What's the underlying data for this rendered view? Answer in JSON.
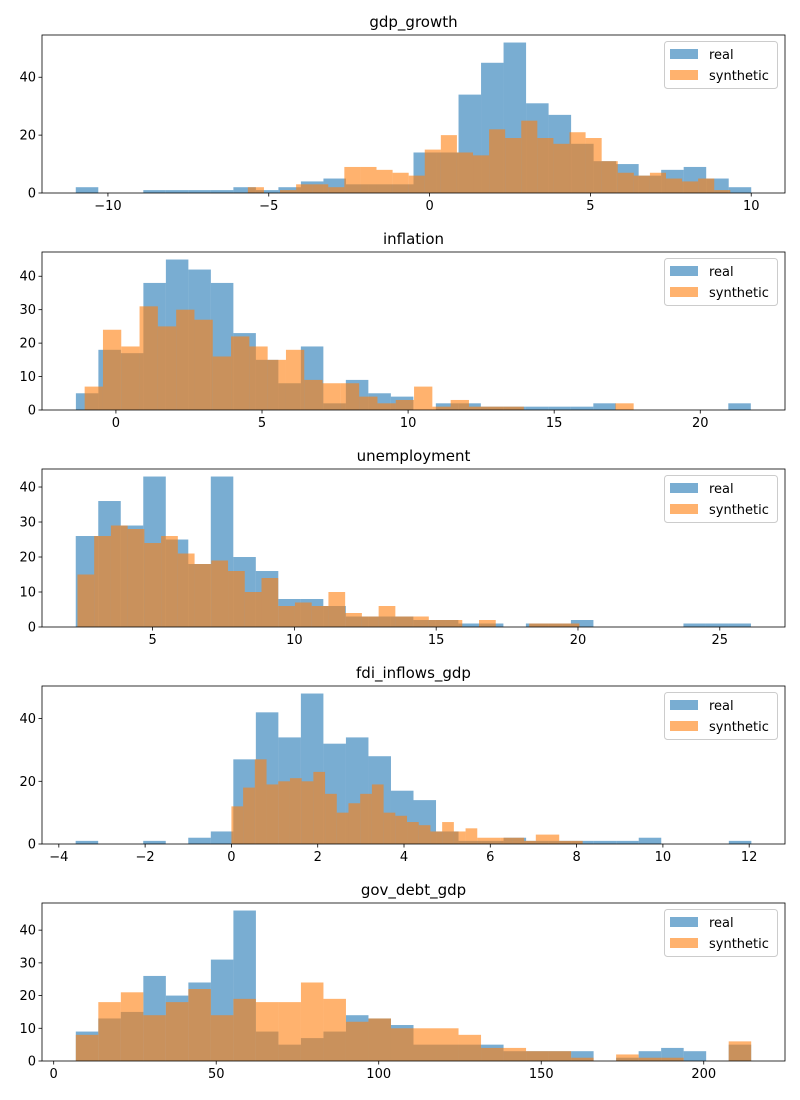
{
  "legend": {
    "real_label": "real",
    "synthetic_label": "synthetic",
    "placement": "top-right"
  },
  "colors": {
    "real": "#1f77b4",
    "synthetic": "#ff7f0e",
    "opacity": 0.6
  },
  "chart_data": [
    {
      "type": "bar",
      "title": "gdp_growth",
      "xlim": [
        -12.05,
        11.05
      ],
      "xticks": [
        -10,
        -5,
        0,
        5,
        10
      ],
      "xtick_labels": [
        "−10",
        "−5",
        "0",
        "5",
        "10"
      ],
      "yticks": [
        0,
        20,
        40
      ],
      "ytick_labels": [
        "0",
        "20",
        "40"
      ],
      "series": [
        {
          "name": "real",
          "range": [
            -11,
            10
          ],
          "values": [
            2,
            0,
            0,
            1,
            1,
            1,
            1,
            2,
            1,
            2,
            4,
            5,
            3,
            3,
            3,
            14,
            14,
            34,
            45,
            52,
            31,
            27,
            17,
            11,
            10,
            6,
            8,
            9,
            5,
            2
          ]
        },
        {
          "name": "synthetic",
          "range": [
            -5.65,
            9.35
          ],
          "values": [
            2,
            0,
            1,
            3,
            3,
            2,
            9,
            9,
            8,
            7,
            6,
            15,
            20,
            14,
            13,
            22,
            19,
            25,
            19,
            17,
            21,
            19,
            11,
            7,
            6,
            7,
            5,
            4,
            5,
            1
          ]
        }
      ]
    },
    {
      "type": "bar",
      "title": "inflation",
      "xlim": [
        -2.53,
        22.9
      ],
      "xticks": [
        0,
        5,
        10,
        15,
        20
      ],
      "xtick_labels": [
        "0",
        "5",
        "10",
        "15",
        "20"
      ],
      "yticks": [
        0,
        10,
        20,
        30,
        40
      ],
      "ytick_labels": [
        "0",
        "10",
        "20",
        "30",
        "40"
      ],
      "series": [
        {
          "name": "real",
          "range": [
            -1.37,
            21.73
          ],
          "values": [
            5,
            18,
            17,
            38,
            45,
            42,
            38,
            23,
            15,
            8,
            19,
            2,
            9,
            5,
            4,
            0,
            2,
            2,
            1,
            1,
            1,
            1,
            1,
            2,
            0,
            0,
            0,
            0,
            0,
            2
          ]
        },
        {
          "name": "synthetic",
          "range": [
            -1.07,
            17.72
          ],
          "values": [
            7,
            24,
            19,
            31,
            25,
            30,
            27,
            16,
            22,
            19,
            15,
            18,
            9,
            8,
            8,
            4,
            2,
            3,
            7,
            1,
            3,
            1,
            1,
            1,
            0,
            0,
            0,
            0,
            0,
            2
          ]
        }
      ]
    },
    {
      "type": "bar",
      "title": "unemployment",
      "xlim": [
        1.1,
        27.3
      ],
      "xticks": [
        5,
        10,
        15,
        20,
        25
      ],
      "xtick_labels": [
        "5",
        "10",
        "15",
        "20",
        "25"
      ],
      "yticks": [
        0,
        10,
        20,
        30,
        40
      ],
      "ytick_labels": [
        "0",
        "10",
        "20",
        "30",
        "40"
      ],
      "series": [
        {
          "name": "real",
          "range": [
            2.29,
            26.1
          ],
          "values": [
            26,
            36,
            29,
            43,
            25,
            18,
            43,
            20,
            16,
            8,
            8,
            6,
            3,
            3,
            3,
            2,
            2,
            1,
            1,
            0,
            1,
            1,
            2,
            0,
            0,
            0,
            0,
            1,
            1,
            1
          ]
        },
        {
          "name": "synthetic",
          "range": [
            2.35,
            20.05
          ],
          "values": [
            15,
            26,
            29,
            28,
            24,
            26,
            21,
            18,
            19,
            16,
            10,
            14,
            6,
            7,
            6,
            10,
            4,
            3,
            6,
            3,
            3,
            2,
            2,
            0,
            2,
            0,
            0,
            1,
            1,
            1
          ]
        }
      ]
    },
    {
      "type": "bar",
      "title": "fdi_inflows_gdp",
      "xlim": [
        -4.39,
        12.83
      ],
      "xticks": [
        -4,
        -2,
        0,
        2,
        4,
        6,
        8,
        10,
        12
      ],
      "xtick_labels": [
        "−4",
        "−2",
        "0",
        "2",
        "4",
        "6",
        "8",
        "10",
        "12"
      ],
      "yticks": [
        0,
        20,
        40
      ],
      "ytick_labels": [
        "0",
        "20",
        "40"
      ],
      "series": [
        {
          "name": "real",
          "range": [
            -3.61,
            12.05
          ],
          "values": [
            1,
            0,
            0,
            1,
            0,
            2,
            4,
            27,
            42,
            34,
            48,
            32,
            34,
            28,
            17,
            14,
            4,
            1,
            1,
            2,
            1,
            1,
            1,
            1,
            1,
            2,
            0,
            0,
            0,
            1
          ]
        },
        {
          "name": "synthetic",
          "range": [
            0,
            8.14
          ],
          "values": [
            12,
            18,
            27,
            19,
            20,
            21,
            20,
            23,
            16,
            10,
            13,
            16,
            19,
            10,
            9,
            7,
            6,
            4,
            7,
            4,
            5,
            2,
            2,
            2,
            2,
            1,
            3,
            3,
            1,
            1
          ]
        }
      ]
    },
    {
      "type": "bar",
      "title": "gov_debt_gdp",
      "xlim": [
        -3.6,
        225
      ],
      "xticks": [
        0,
        50,
        100,
        150,
        200
      ],
      "xtick_labels": [
        "0",
        "50",
        "100",
        "150",
        "200"
      ],
      "yticks": [
        0,
        10,
        20,
        30,
        40
      ],
      "ytick_labels": [
        "0",
        "10",
        "20",
        "30",
        "40"
      ],
      "series": [
        {
          "name": "real",
          "range": [
            6.8,
            214.6
          ],
          "values": [
            9,
            13,
            15,
            26,
            20,
            24,
            31,
            46,
            9,
            5,
            7,
            9,
            14,
            13,
            11,
            5,
            5,
            5,
            5,
            3,
            3,
            3,
            3,
            0,
            1,
            3,
            4,
            3,
            0,
            5
          ]
        },
        {
          "name": "synthetic",
          "range": [
            6.8,
            214.6
          ],
          "values": [
            8,
            18,
            21,
            14,
            18,
            22,
            14,
            19,
            18,
            18,
            24,
            19,
            12,
            13,
            10,
            10,
            10,
            8,
            4,
            4,
            3,
            3,
            1,
            0,
            2,
            1,
            1,
            0,
            0,
            6
          ]
        }
      ]
    }
  ]
}
